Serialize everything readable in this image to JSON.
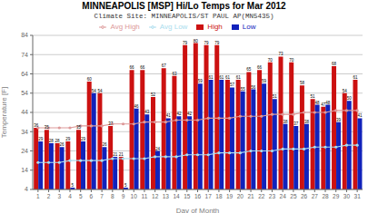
{
  "chart_data": {
    "type": "bar",
    "title": "MINNEAPOLIS [MSP] Hi/Lo Temps for Mar 2012",
    "subtitle": "Climate Site: MINNEAPOLIS/ST PAUL AP(MN5435)",
    "xlabel": "Day of Month",
    "ylabel": "Temperature [F]",
    "categories": [
      "1",
      "2",
      "3",
      "4",
      "5",
      "6",
      "7",
      "8",
      "9",
      "10",
      "11",
      "12",
      "13",
      "14",
      "15",
      "16",
      "17",
      "18",
      "19",
      "20",
      "21",
      "22",
      "23",
      "24",
      "25",
      "26",
      "27",
      "28",
      "29",
      "30",
      "31"
    ],
    "series": [
      {
        "name": "High",
        "type": "bar",
        "color": "#cc1111",
        "data_labels": true,
        "values": [
          36,
          35,
          28,
          29,
          35,
          60,
          54,
          37,
          21,
          66,
          66,
          52,
          67,
          63,
          79,
          80,
          79,
          79,
          61,
          61,
          65,
          66,
          70,
          73,
          70,
          58,
          51,
          47,
          68,
          54,
          61
        ]
      },
      {
        "name": "Low",
        "type": "bar",
        "color": "#1122bb",
        "data_labels": true,
        "values": [
          29,
          28,
          26,
          5,
          29,
          54,
          26,
          21,
          5,
          46,
          43,
          24,
          41,
          42,
          42,
          59,
          61,
          61,
          57,
          55,
          56,
          59,
          51,
          38,
          37,
          38,
          48,
          48,
          39,
          50,
          41
        ]
      },
      {
        "name": "Avg High",
        "type": "line",
        "color": "#dd9999",
        "marker": "o",
        "values": [
          36,
          36,
          36,
          36,
          37,
          37,
          37,
          38,
          38,
          38,
          39,
          39,
          39,
          40,
          40,
          40,
          41,
          41,
          41,
          42,
          42,
          42,
          43,
          43,
          43,
          44,
          44,
          44,
          45,
          45,
          45
        ]
      },
      {
        "name": "Avg Low",
        "type": "line",
        "color": "#aaddee",
        "marker": "o",
        "values": [
          18,
          18,
          18,
          19,
          19,
          19,
          19,
          20,
          20,
          20,
          20,
          21,
          21,
          21,
          22,
          22,
          22,
          23,
          23,
          23,
          24,
          24,
          24,
          25,
          25,
          25,
          26,
          26,
          26,
          27,
          27
        ]
      }
    ],
    "ylim": [
      4,
      84
    ],
    "yticks": [
      4,
      14,
      24,
      34,
      44,
      54,
      64,
      74,
      84
    ],
    "grid": true
  }
}
